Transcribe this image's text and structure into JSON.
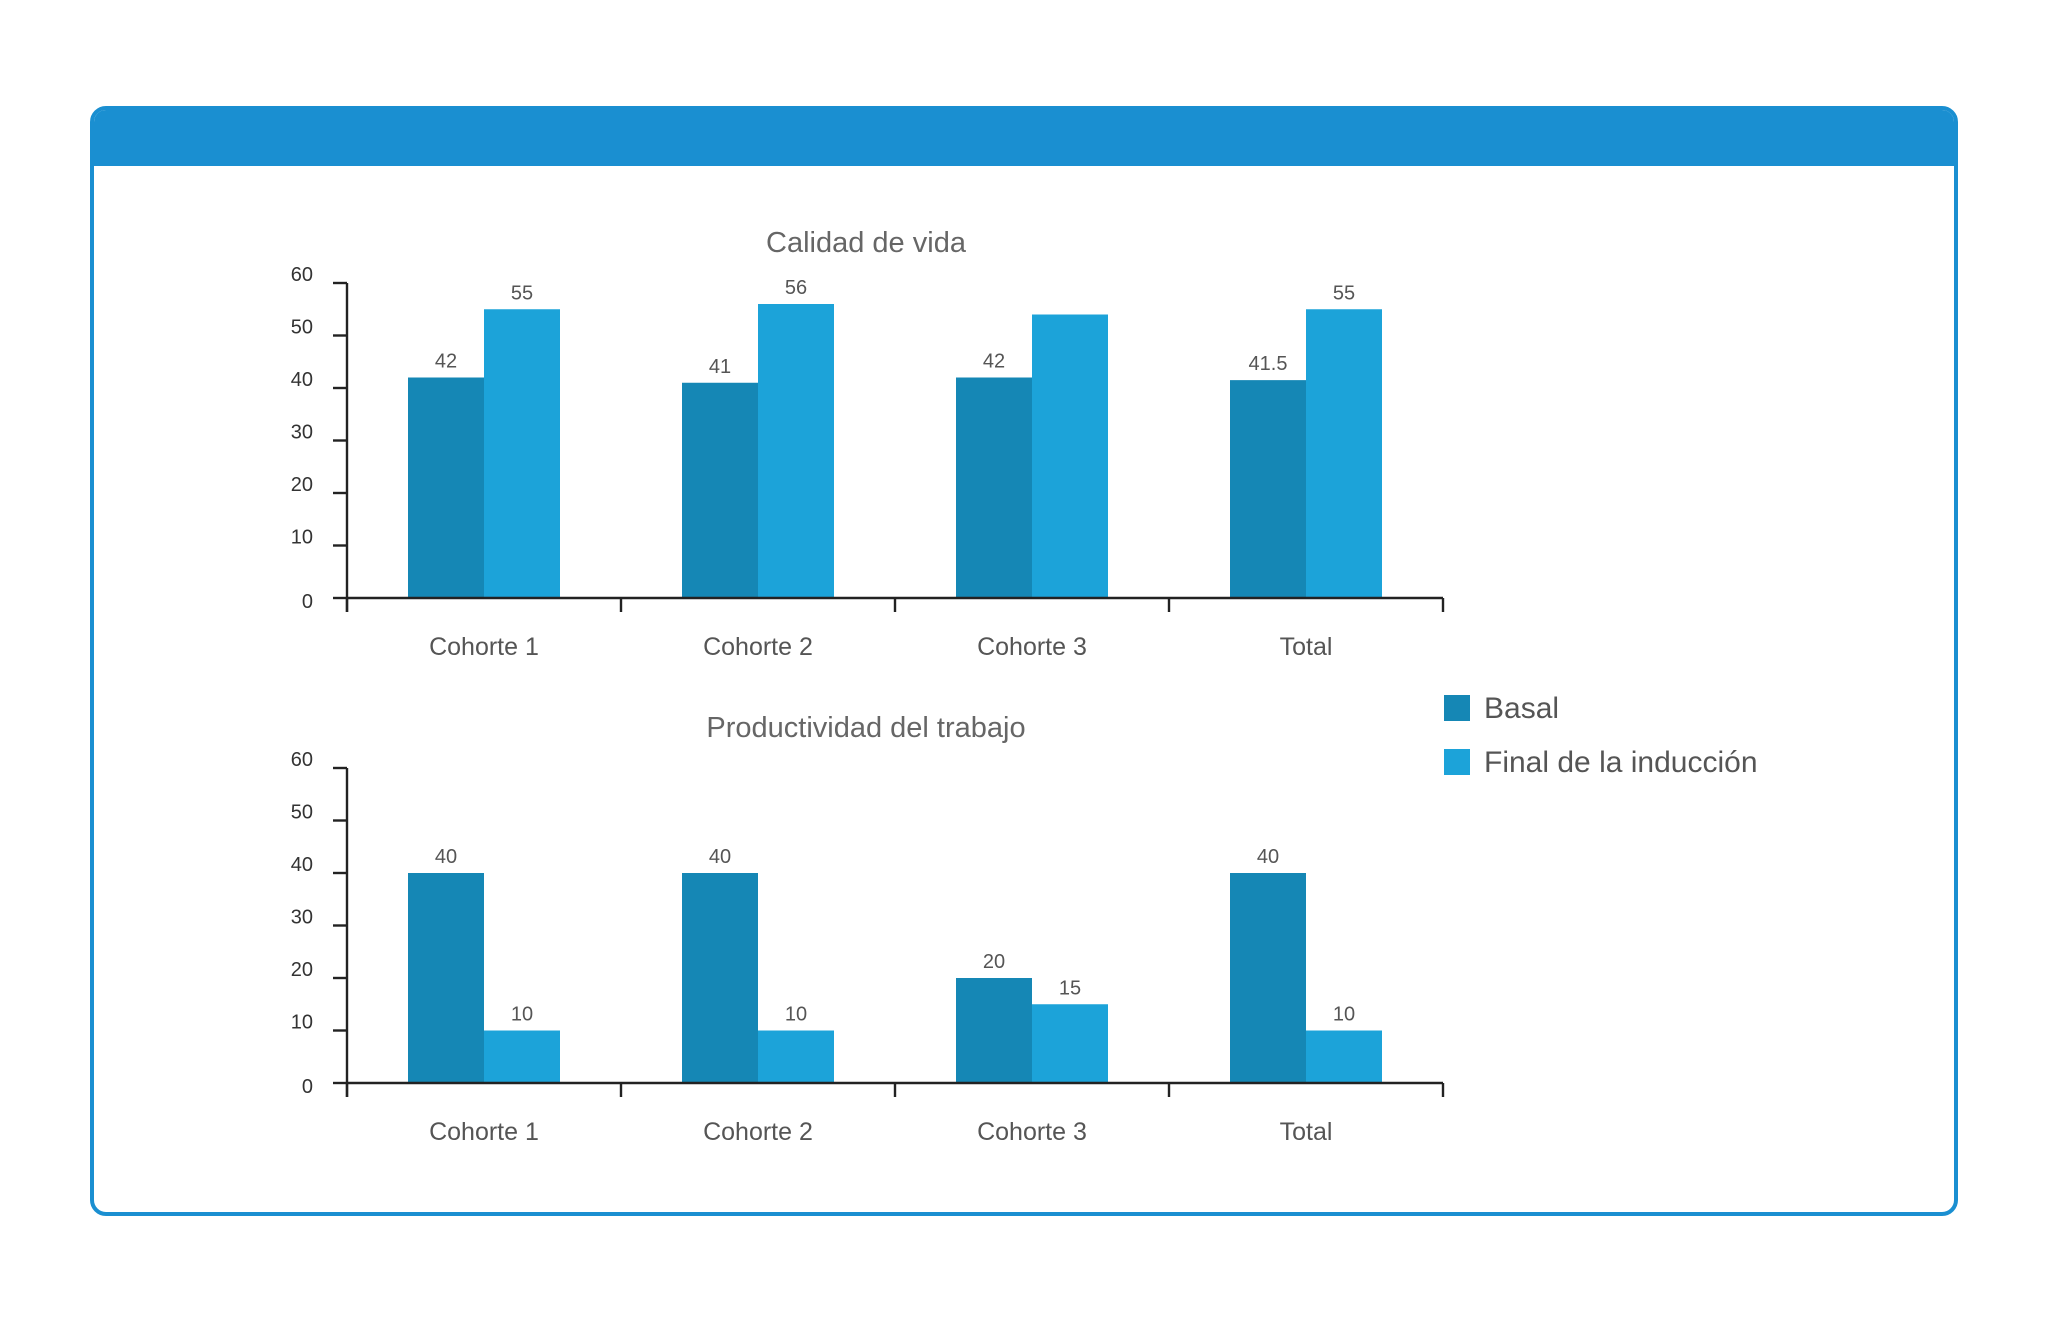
{
  "colors": {
    "frame": "#1a8fd1",
    "basal": "#1587b5",
    "final": "#1ca3d9"
  },
  "legend": [
    {
      "label": "Basal",
      "color": "#1587b5"
    },
    {
      "label": "Final de la inducción",
      "color": "#1ca3d9"
    }
  ],
  "chart_data": [
    {
      "type": "bar",
      "title": "Calidad de vida",
      "categories": [
        "Cohorte 1",
        "Cohorte 2",
        "Cohorte 3",
        "Total"
      ],
      "series": [
        {
          "name": "Basal",
          "values": [
            42,
            41,
            42,
            41.5
          ],
          "labels": [
            "42",
            "41",
            "42",
            "41.5"
          ]
        },
        {
          "name": "Final de la inducción",
          "values": [
            55,
            56,
            54,
            55
          ],
          "labels": [
            "55",
            "56",
            "",
            "55"
          ]
        }
      ],
      "ylim": [
        0,
        60
      ],
      "yticks": [
        0,
        10,
        20,
        30,
        40,
        50,
        60
      ],
      "grid": false,
      "legend_position": "right"
    },
    {
      "type": "bar",
      "title": "Productividad del trabajo",
      "categories": [
        "Cohorte 1",
        "Cohorte 2",
        "Cohorte 3",
        "Total"
      ],
      "series": [
        {
          "name": "Basal",
          "values": [
            40,
            40,
            20,
            40
          ],
          "labels": [
            "40",
            "40",
            "20",
            "40"
          ]
        },
        {
          "name": "Final de la inducción",
          "values": [
            10,
            10,
            15,
            10
          ],
          "labels": [
            "10",
            "10",
            "15",
            "10"
          ]
        }
      ],
      "ylim": [
        0,
        60
      ],
      "yticks": [
        0,
        10,
        20,
        30,
        40,
        50,
        60
      ],
      "grid": false,
      "legend_position": "right"
    }
  ]
}
